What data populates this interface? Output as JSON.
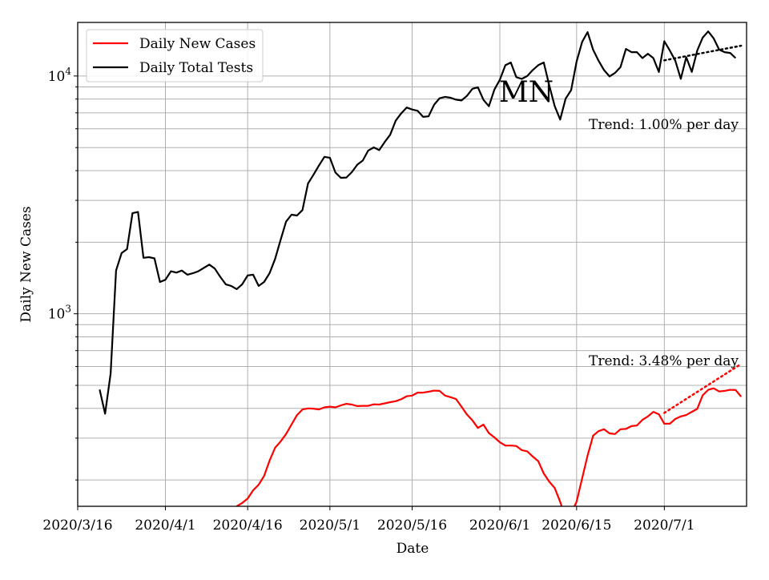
{
  "chart_data": {
    "type": "line",
    "yscale": "log",
    "title": "",
    "annotation": "MN",
    "xlabel": "Date",
    "ylabel": "Daily New Cases",
    "xlim": [
      "2020-03-16",
      "2020-07-16"
    ],
    "ylim": [
      155,
      16800
    ],
    "grid": true,
    "legend": "top-left",
    "x_ticks": [
      "2020/3/16",
      "2020/4/1",
      "2020/4/16",
      "2020/5/1",
      "2020/5/16",
      "2020/6/1",
      "2020/6/15",
      "2020/7/1"
    ],
    "y_tick_labels": [
      {
        "value": 1000,
        "base": "10",
        "exp": "3"
      },
      {
        "value": 10000,
        "base": "10",
        "exp": "4"
      }
    ],
    "series": [
      {
        "name": "Daily New Cases",
        "color": "#ff0000",
        "start_date": "2020-03-16",
        "values": [
          null,
          null,
          null,
          null,
          null,
          null,
          null,
          null,
          null,
          null,
          null,
          null,
          null,
          null,
          null,
          null,
          null,
          null,
          null,
          null,
          null,
          null,
          null,
          null,
          null,
          null,
          null,
          null,
          null,
          155,
          160,
          167,
          181,
          191,
          208,
          241,
          273,
          290,
          312,
          342,
          375,
          396,
          400,
          399,
          396,
          404,
          407,
          404,
          412,
          418,
          415,
          409,
          410,
          410,
          416,
          415,
          420,
          425,
          429,
          437,
          450,
          453,
          466,
          466,
          470,
          475,
          474,
          453,
          446,
          438,
          407,
          377,
          356,
          331,
          342,
          315,
          302,
          288,
          279,
          279,
          278,
          267,
          264,
          251,
          240,
          213,
          197,
          185,
          162,
          137,
          145,
          162,
          203,
          253,
          307,
          321,
          327,
          314,
          312,
          327,
          328,
          337,
          339,
          358,
          370,
          387,
          378,
          345,
          345,
          361,
          370,
          375,
          387,
          398,
          454,
          479,
          486,
          471,
          474,
          479,
          478,
          448
        ],
        "trend": {
          "label": "Trend: 3.48% per day",
          "start_value": 383,
          "end_value": 615,
          "start_day": 107,
          "end_day": 121
        }
      },
      {
        "name": "Daily Total Tests",
        "color": "#000000",
        "start_date": "2020-03-16",
        "values": [
          null,
          null,
          null,
          null,
          480,
          380,
          560,
          1520,
          1800,
          1870,
          2650,
          2680,
          1720,
          1730,
          1710,
          1360,
          1390,
          1510,
          1490,
          1520,
          1460,
          1480,
          1510,
          1560,
          1610,
          1550,
          1430,
          1330,
          1310,
          1270,
          1330,
          1450,
          1460,
          1310,
          1360,
          1480,
          1700,
          2040,
          2440,
          2610,
          2590,
          2730,
          3530,
          3840,
          4200,
          4570,
          4530,
          3930,
          3730,
          3740,
          3940,
          4240,
          4410,
          4860,
          5010,
          4880,
          5280,
          5660,
          6490,
          6960,
          7370,
          7230,
          7140,
          6730,
          6770,
          7570,
          8060,
          8170,
          8100,
          7950,
          7890,
          8250,
          8840,
          8960,
          7940,
          7460,
          8770,
          9650,
          11100,
          11400,
          9890,
          9720,
          10000,
          10600,
          11100,
          11400,
          9150,
          7470,
          6560,
          8030,
          8720,
          11500,
          13900,
          15300,
          12900,
          11600,
          10600,
          9960,
          10300,
          10900,
          13000,
          12600,
          12600,
          11900,
          12400,
          11900,
          10400,
          14000,
          12800,
          11600,
          9730,
          12000,
          10400,
          12800,
          14500,
          15400,
          14400,
          12900,
          12600,
          12500,
          11900
        ],
        "trend": {
          "label": "Trend: 1.00% per day",
          "start_value": 11640,
          "end_value": 13410,
          "start_day": 107,
          "end_day": 121
        }
      }
    ]
  }
}
